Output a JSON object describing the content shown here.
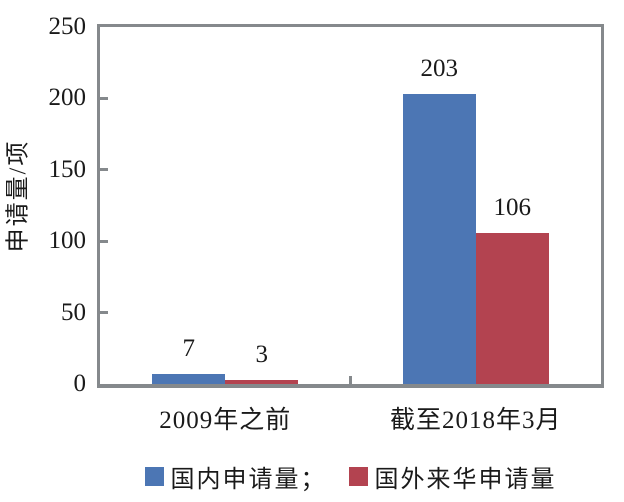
{
  "chart_data": {
    "type": "bar",
    "title": "",
    "xlabel": "",
    "ylabel": "申请量/项",
    "categories": [
      "2009年之前",
      "截至2018年3月"
    ],
    "series": [
      {
        "name": "国内申请量",
        "color": "#4c76b4",
        "values": [
          7,
          203
        ]
      },
      {
        "name": "国外来华申请量",
        "color": "#b34350",
        "values": [
          3,
          106
        ]
      }
    ],
    "value_labels": [
      [
        "7",
        "3"
      ],
      [
        "203",
        "106"
      ]
    ],
    "ylim": [
      0,
      250
    ],
    "yticks": [
      "0",
      "50",
      "100",
      "150",
      "200",
      "250"
    ],
    "grid": false,
    "legend_position": "bottom",
    "legend_labels": [
      "国内申请量；",
      "国外来华申请量"
    ]
  },
  "style": {
    "axis_color": "#85898c",
    "text_color": "#1a1a1a",
    "background": "#ffffff"
  }
}
